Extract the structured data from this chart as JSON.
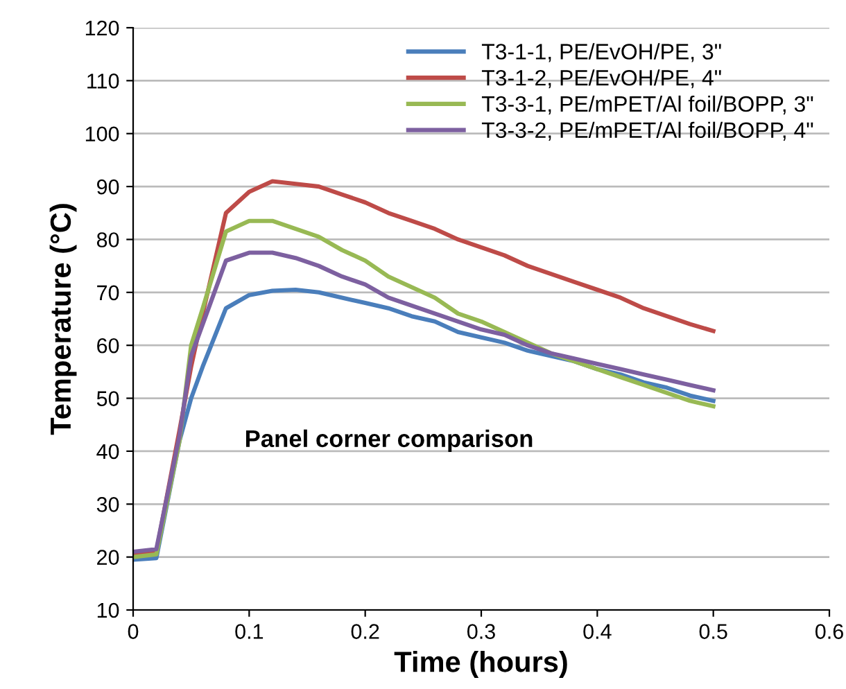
{
  "chart_data": {
    "type": "line",
    "xlabel": "Time (hours)",
    "ylabel": "Temperature (°C)",
    "annotations": [
      "Panel corner comparison"
    ],
    "x": [
      0,
      0.02,
      0.04,
      0.05,
      0.06,
      0.08,
      0.1,
      0.12,
      0.14,
      0.16,
      0.18,
      0.2,
      0.22,
      0.24,
      0.26,
      0.28,
      0.3,
      0.32,
      0.34,
      0.36,
      0.38,
      0.4,
      0.42,
      0.44,
      0.46,
      0.48,
      0.5
    ],
    "series": [
      {
        "name": "T3-1-1, PE/EvOH/PE, 3\"",
        "color": "#4a7ebb",
        "values": [
          19.5,
          19.8,
          42,
          50,
          56,
          67,
          69.5,
          70.3,
          70.5,
          70,
          69,
          68,
          67,
          65.5,
          64.5,
          62.5,
          61.5,
          60.5,
          59,
          58,
          57,
          55.5,
          54.5,
          53,
          52,
          50.5,
          49.5
        ]
      },
      {
        "name": "T3-1-2, PE/EvOH/PE, 4\"",
        "color": "#be4b48",
        "values": [
          20.5,
          21,
          44,
          56,
          66,
          85,
          89,
          91,
          90.5,
          90,
          88.5,
          87,
          85,
          83.5,
          82,
          80,
          78.5,
          77,
          75,
          73.5,
          72,
          70.5,
          69,
          67,
          65.5,
          64,
          62.7
        ]
      },
      {
        "name": "T3-3-1, PE/mPET/Al foil/BOPP, 3\"",
        "color": "#98b954",
        "values": [
          20,
          20.5,
          42,
          60,
          67,
          81.5,
          83.5,
          83.5,
          82,
          80.5,
          78,
          76,
          73,
          71,
          69,
          66,
          64.5,
          62.5,
          60.5,
          58.5,
          57,
          55.5,
          54,
          52.5,
          51,
          49.5,
          48.5
        ]
      },
      {
        "name": "T3-3-2, PE/mPET/Al foil/BOPP, 4\"",
        "color": "#7d60a0",
        "values": [
          21,
          21.5,
          43,
          58,
          64,
          76,
          77.5,
          77.5,
          76.5,
          75,
          73,
          71.5,
          69,
          67.5,
          66,
          64.5,
          63,
          62,
          60,
          58.5,
          57.5,
          56.5,
          55.5,
          54.5,
          53.5,
          52.5,
          51.5
        ]
      }
    ],
    "xlim": [
      0,
      0.6
    ],
    "xticks": [
      0,
      0.1,
      0.2,
      0.3,
      0.4,
      0.5,
      0.6
    ],
    "ylim": [
      10,
      120
    ],
    "yticks": [
      10,
      20,
      30,
      40,
      50,
      60,
      70,
      80,
      90,
      100,
      110,
      120
    ],
    "grid": "y",
    "legend": "top right",
    "marker": "none",
    "line_style": "solid"
  }
}
